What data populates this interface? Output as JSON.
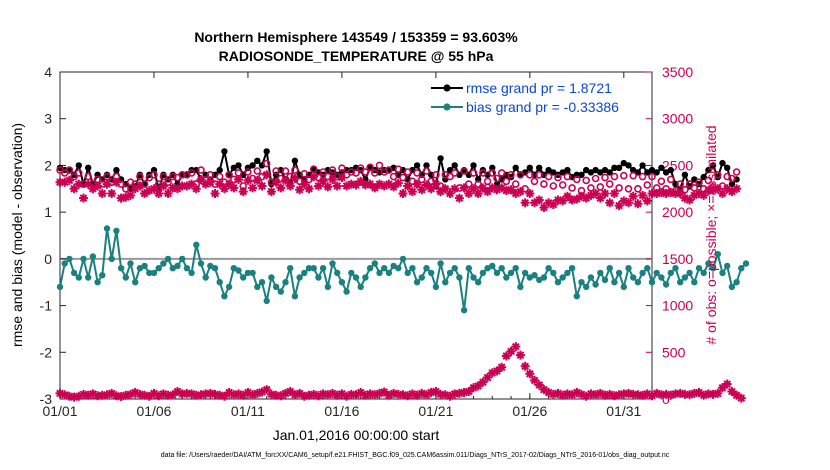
{
  "chart_data": {
    "type": "line",
    "title_line1": "Northern Hemisphere 143549 / 153359 = 93.603%",
    "title_line2": "RADIOSONDE_TEMPERATURE @ 55 hPa",
    "xlabel": "Jan.01,2016 00:00:00 start",
    "ylabel_left": "rmse and bias (model - observation)",
    "ylabel_right": "# of obs: o=possible; ×=assimilated",
    "xlim": [
      1,
      32.5
    ],
    "ylim_left": [
      -3,
      4
    ],
    "ylim_right": [
      0,
      3500
    ],
    "x_ticks": [
      1,
      6,
      11,
      16,
      21,
      26,
      31
    ],
    "x_tick_labels": [
      "01/01",
      "01/06",
      "01/11",
      "01/16",
      "01/21",
      "01/26",
      "01/31"
    ],
    "y_ticks_left": [
      "-3",
      "-2",
      "-1",
      "0",
      "1",
      "2",
      "3",
      "4"
    ],
    "y_ticks_right": [
      "0",
      "500",
      "1000",
      "1500",
      "2000",
      "2500",
      "3000",
      "3500"
    ],
    "zero_line": 0,
    "footer": "data file: /Users/raeder/DAI/ATM_forcXX/CAM6_setup/f.e21.FHIST_BGC.f09_025.CAM6assim.011/Diags_NTrS_2017-02/Diags_NTrS_2016-01/obs_diag_output.nc",
    "legend": [
      {
        "label": "rmse grand pr = 1.8721",
        "color": "#000000"
      },
      {
        "label": "bias grand pr = -0.33386",
        "color": "#1a8080"
      }
    ],
    "series": [
      {
        "name": "rmse",
        "color": "#000000",
        "marker": "filled-circle",
        "x_start": 1,
        "x_step": 0.25,
        "values": [
          1.95,
          1.9,
          1.9,
          1.8,
          2.0,
          1.6,
          1.95,
          1.6,
          1.8,
          1.7,
          1.8,
          1.7,
          1.9,
          1.7,
          1.6,
          1.5,
          1.55,
          1.8,
          1.6,
          1.8,
          1.9,
          1.5,
          1.8,
          1.7,
          1.8,
          1.6,
          1.8,
          1.8,
          1.9,
          1.9,
          1.7,
          1.8,
          1.7,
          1.8,
          1.9,
          2.3,
          1.8,
          1.95,
          2.0,
          1.8,
          1.95,
          2.0,
          2.1,
          2.0,
          2.3,
          1.6,
          1.8,
          1.9,
          1.7,
          1.6,
          2.1,
          1.8,
          1.7,
          1.8,
          1.9,
          1.85,
          1.8,
          1.9,
          1.85,
          1.8,
          1.85,
          1.9,
          1.9,
          1.95,
          1.9,
          1.7,
          1.95,
          1.9,
          1.85,
          1.9,
          1.9,
          1.95,
          1.8,
          1.9,
          1.7,
          1.9,
          2.0,
          1.8,
          2.0,
          1.8,
          1.55,
          2.15,
          1.7,
          1.9,
          2.0,
          1.8,
          1.9,
          1.8,
          2.0,
          1.7,
          1.9,
          1.8,
          1.95,
          1.6,
          1.7,
          1.8,
          1.75,
          1.95,
          1.8,
          1.85,
          1.95,
          1.8,
          1.95,
          1.8,
          1.9,
          1.85,
          1.8,
          1.85,
          1.9,
          1.75,
          1.8,
          1.8,
          1.9,
          1.85,
          1.9,
          1.85,
          1.9,
          1.85,
          1.95,
          1.95,
          2.05,
          2.0,
          1.9,
          1.85,
          2.0,
          1.85,
          1.9,
          1.85,
          1.95,
          1.85,
          1.9,
          1.6,
          1.5,
          1.8,
          1.55,
          1.7,
          1.6,
          1.75,
          1.9,
          2.0,
          1.75,
          2.05,
          1.95,
          1.6,
          1.7
        ]
      },
      {
        "name": "bias",
        "color": "#1a8080",
        "marker": "filled-circle",
        "x_start": 1,
        "x_step": 0.25,
        "values": [
          -0.6,
          -0.1,
          0.0,
          -0.3,
          -0.4,
          0.0,
          -0.4,
          0.05,
          -0.5,
          -0.35,
          0.65,
          0.0,
          0.6,
          -0.2,
          -0.4,
          -0.1,
          -0.5,
          -0.2,
          -0.15,
          -0.3,
          -0.3,
          -0.2,
          -0.1,
          0.0,
          -0.2,
          -0.15,
          0.0,
          -0.2,
          -0.3,
          0.3,
          -0.1,
          -0.4,
          -0.15,
          -0.2,
          -0.5,
          -0.8,
          -0.6,
          -0.2,
          -0.25,
          -0.4,
          -0.3,
          -0.3,
          -0.6,
          -0.5,
          -0.9,
          -0.4,
          -0.6,
          -0.7,
          -0.5,
          -0.2,
          -0.8,
          -0.4,
          -0.3,
          -0.2,
          -0.2,
          -0.4,
          -0.2,
          -0.6,
          -0.1,
          -0.3,
          -0.5,
          -0.7,
          -0.3,
          -0.4,
          -0.6,
          -0.4,
          -0.2,
          -0.1,
          -0.3,
          -0.2,
          -0.3,
          -0.15,
          -0.2,
          0.0,
          -0.3,
          -0.2,
          -0.5,
          -0.4,
          -0.2,
          -0.3,
          -0.6,
          -0.1,
          -0.5,
          -0.3,
          -0.2,
          -0.4,
          -1.1,
          -0.2,
          -0.4,
          -0.5,
          -0.3,
          -0.2,
          -0.15,
          -0.3,
          -0.2,
          -0.4,
          -0.3,
          -0.2,
          -0.6,
          -0.3,
          -0.4,
          -0.35,
          -0.45,
          -0.4,
          -0.2,
          -0.3,
          -0.5,
          -0.4,
          -0.3,
          -0.2,
          -0.8,
          -0.5,
          -0.6,
          -0.4,
          -0.55,
          -0.3,
          -0.45,
          -0.2,
          -0.5,
          -0.3,
          -0.6,
          -0.2,
          -0.4,
          -0.5,
          -0.3,
          -0.2,
          -0.5,
          -0.3,
          -0.4,
          -0.55,
          -0.3,
          -0.2,
          -0.5,
          -0.4,
          -0.3,
          -0.5,
          -0.2,
          -0.3,
          -0.1,
          -0.2,
          0.1,
          -0.3,
          -0.15,
          -0.6,
          -0.5,
          -0.2,
          -0.1
        ]
      },
      {
        "name": "possible",
        "color": "#cc0052",
        "marker": "open-circle",
        "axis": "right",
        "x_start": 1,
        "x_step": 0.25,
        "values": [
          2450,
          2420,
          2450,
          2380,
          2420,
          2300,
          2380,
          2300,
          2350,
          2300,
          2380,
          2320,
          2380,
          2300,
          2250,
          2320,
          2300,
          2380,
          2300,
          2370,
          2400,
          2300,
          2380,
          2320,
          2380,
          2370,
          2400,
          2400,
          2420,
          2300,
          2450,
          2350,
          2400,
          2300,
          2380,
          2320,
          2400,
          2350,
          2420,
          2280,
          2430,
          2360,
          2440,
          2380,
          2520,
          2320,
          2440,
          2360,
          2440,
          2380,
          2450,
          2330,
          2410,
          2350,
          2460,
          2370,
          2430,
          2380,
          2450,
          2380,
          2470,
          2400,
          2430,
          2420,
          2470,
          2430,
          2480,
          2420,
          2500,
          2430,
          2450,
          2380,
          2460,
          2370,
          2430,
          2330,
          2420,
          2350,
          2440,
          2330,
          2400,
          2280,
          2400,
          2380,
          2420,
          2260,
          2440,
          2300,
          2420,
          2300,
          2420,
          2330,
          2420,
          2360,
          2420,
          2330,
          2400,
          2300,
          2400,
          2250,
          2400,
          2330,
          2400,
          2300,
          2380,
          2280,
          2370,
          2290,
          2380,
          2260,
          2350,
          2230,
          2340,
          2260,
          2360,
          2270,
          2370,
          2300,
          2380,
          2260,
          2390,
          2250,
          2390,
          2250,
          2380,
          2290,
          2380,
          2260,
          2330,
          2250,
          2350,
          2230,
          2300,
          2240,
          2300,
          2260,
          2320,
          2250,
          2340,
          2270,
          2400,
          2280,
          2380,
          2360,
          2430
        ]
      },
      {
        "name": "assimilated",
        "color": "#cc0052",
        "marker": "asterisk",
        "axis": "right",
        "x_start": 1,
        "x_step": 0.25,
        "values": [
          2320,
          2320,
          2340,
          2250,
          2300,
          2150,
          2300,
          2250,
          2280,
          2200,
          2300,
          2200,
          2320,
          2150,
          2160,
          2180,
          2250,
          2280,
          2200,
          2230,
          2250,
          2200,
          2280,
          2200,
          2260,
          2250,
          2280,
          2280,
          2300,
          2250,
          2350,
          2300,
          2320,
          2200,
          2300,
          2250,
          2300,
          2260,
          2350,
          2220,
          2340,
          2260,
          2340,
          2280,
          2400,
          2220,
          2320,
          2260,
          2340,
          2280,
          2360,
          2240,
          2300,
          2250,
          2380,
          2280,
          2330,
          2270,
          2350,
          2280,
          2370,
          2280,
          2300,
          2290,
          2330,
          2290,
          2300,
          2260,
          2300,
          2280,
          2300,
          2270,
          2310,
          2200,
          2280,
          2220,
          2300,
          2240,
          2290,
          2250,
          2300,
          2220,
          2250,
          2200,
          2250,
          2150,
          2260,
          2200,
          2250,
          2200,
          2260,
          2220,
          2260,
          2240,
          2260,
          2230,
          2240,
          2200,
          2220,
          2100,
          2200,
          2100,
          2130,
          2050,
          2100,
          2080,
          2130,
          2120,
          2170,
          2130,
          2140,
          2170,
          2150,
          2180,
          2200,
          2150,
          2200,
          2100,
          2200,
          2070,
          2120,
          2100,
          2170,
          2090,
          2180,
          2120,
          2200,
          2200,
          2210,
          2200,
          2210,
          2200,
          2200,
          2150,
          2130,
          2180,
          2200,
          2180,
          2230,
          2240,
          2250,
          2200,
          2250,
          2220,
          2250
        ]
      },
      {
        "name": "count_bottom",
        "color": "#cc0052",
        "marker": "asterisk",
        "axis": "right",
        "x_start": 1,
        "x_step": 0.25,
        "values": [
          60,
          45,
          30,
          20,
          30,
          50,
          40,
          55,
          35,
          40,
          45,
          60,
          35,
          25,
          40,
          50,
          70,
          50,
          40,
          30,
          60,
          35,
          55,
          40,
          45,
          80,
          55,
          60,
          55,
          40,
          45,
          55,
          60,
          50,
          40,
          30,
          70,
          45,
          55,
          40,
          70,
          45,
          60,
          75,
          100,
          50,
          40,
          35,
          60,
          80,
          45,
          60,
          30,
          40,
          50,
          35,
          55,
          45,
          60,
          40,
          55,
          30,
          50,
          45,
          70,
          40,
          55,
          45,
          60,
          75,
          40,
          60,
          50,
          45,
          35,
          55,
          40,
          60,
          45,
          70,
          80,
          50,
          45,
          30,
          55,
          60,
          70,
          80,
          120,
          140,
          180,
          230,
          280,
          300,
          340,
          460,
          510,
          560,
          470,
          350,
          270,
          200,
          150,
          100,
          70,
          50,
          60,
          40,
          55,
          45,
          70,
          50,
          30,
          55,
          45,
          60,
          40,
          50,
          35,
          45,
          55,
          60,
          50,
          45,
          40,
          55,
          35,
          60,
          45,
          50,
          40,
          55,
          60,
          50,
          45,
          60,
          70,
          40,
          55,
          50,
          60,
          120,
          160,
          80,
          40,
          10
        ]
      }
    ]
  }
}
